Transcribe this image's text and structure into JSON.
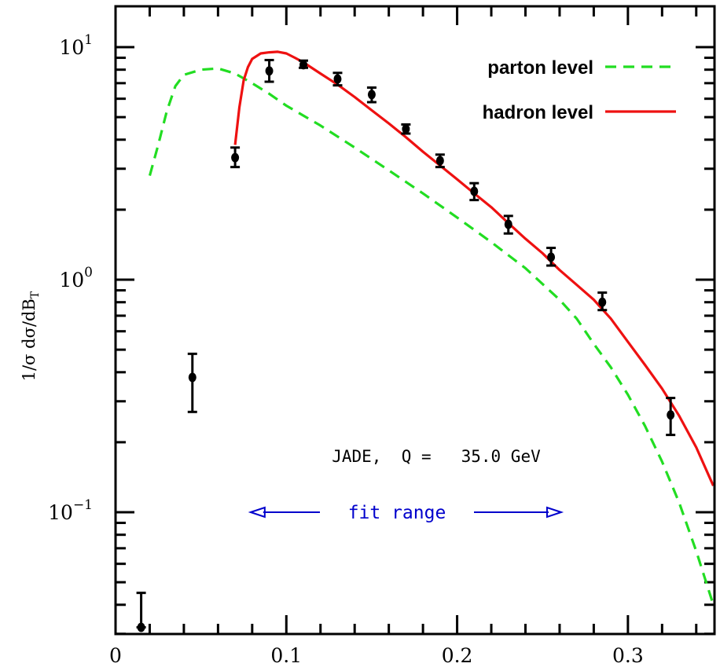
{
  "chart_data": {
    "type": "line",
    "ylabel": "1/σ dσ/dB_T",
    "ylabel_parts": {
      "main": "1/σ  dσ/dB",
      "sub": "T"
    },
    "xlim": [
      0,
      0.35
    ],
    "ylim": [
      0.03,
      20
    ],
    "y_scale": "log",
    "x_ticks": [
      0,
      0.1,
      0.2,
      0.3
    ],
    "x_tick_labels": [
      "0",
      "0.1",
      "0.2",
      "0.3"
    ],
    "y_tick_labels": [
      {
        "value": 10,
        "base": "10",
        "exp": "1"
      },
      {
        "value": 1,
        "base": "10",
        "exp": "0"
      },
      {
        "value": 0.1,
        "base": "10",
        "exp": "−1"
      }
    ],
    "legend_position": "top-right",
    "series": [
      {
        "name": "parton level",
        "style": "dashed",
        "color": "#22dd22",
        "x": [
          0.02,
          0.025,
          0.03,
          0.035,
          0.04,
          0.05,
          0.06,
          0.07,
          0.08,
          0.09,
          0.1,
          0.12,
          0.14,
          0.16,
          0.18,
          0.2,
          0.22,
          0.24,
          0.26,
          0.27,
          0.28,
          0.29,
          0.3,
          0.31,
          0.32,
          0.33,
          0.34,
          0.35
        ],
        "y": [
          2.8,
          3.8,
          5.3,
          6.8,
          7.6,
          8.0,
          8.1,
          7.7,
          7.0,
          6.3,
          5.6,
          4.6,
          3.7,
          2.95,
          2.35,
          1.85,
          1.45,
          1.12,
          0.82,
          0.68,
          0.53,
          0.42,
          0.32,
          0.235,
          0.165,
          0.11,
          0.068,
          0.04
        ]
      },
      {
        "name": "hadron level",
        "style": "solid",
        "color": "#ee1111",
        "x": [
          0.07,
          0.0725,
          0.075,
          0.0775,
          0.08,
          0.085,
          0.09,
          0.095,
          0.1,
          0.105,
          0.11,
          0.12,
          0.13,
          0.14,
          0.15,
          0.16,
          0.17,
          0.18,
          0.19,
          0.2,
          0.21,
          0.22,
          0.23,
          0.24,
          0.25,
          0.26,
          0.27,
          0.28,
          0.29,
          0.3,
          0.31,
          0.32,
          0.33,
          0.34,
          0.35
        ],
        "y": [
          3.8,
          5.5,
          7.2,
          8.2,
          8.9,
          9.4,
          9.5,
          9.55,
          9.4,
          9.0,
          8.6,
          7.7,
          6.9,
          6.1,
          5.35,
          4.7,
          4.1,
          3.55,
          3.1,
          2.7,
          2.35,
          2.05,
          1.75,
          1.5,
          1.3,
          1.1,
          0.95,
          0.82,
          0.68,
          0.54,
          0.43,
          0.34,
          0.26,
          0.19,
          0.13
        ]
      },
      {
        "name": "data",
        "style": "points",
        "color": "#000000",
        "x": [
          0.015,
          0.045,
          0.07,
          0.09,
          0.11,
          0.13,
          0.15,
          0.17,
          0.19,
          0.21,
          0.23,
          0.255,
          0.285,
          0.325
        ],
        "y": [
          0.032,
          0.38,
          3.35,
          7.9,
          8.4,
          7.3,
          6.25,
          4.45,
          3.25,
          2.4,
          1.73,
          1.25,
          0.8,
          0.262
        ],
        "err_low": [
          0.032,
          0.27,
          3.05,
          7.1,
          8.15,
          6.85,
          5.8,
          4.25,
          3.05,
          2.2,
          1.58,
          1.15,
          0.74,
          0.215
        ],
        "err_high": [
          0.045,
          0.48,
          3.7,
          8.8,
          8.75,
          7.75,
          6.7,
          4.65,
          3.45,
          2.6,
          1.88,
          1.37,
          0.88,
          0.31
        ]
      }
    ],
    "annotation": "JADE,  Q =   35.0 GeV",
    "fit_range": {
      "label": "fit range",
      "x_start": 0.08,
      "x_end": 0.26,
      "color": "#0000cc"
    }
  }
}
